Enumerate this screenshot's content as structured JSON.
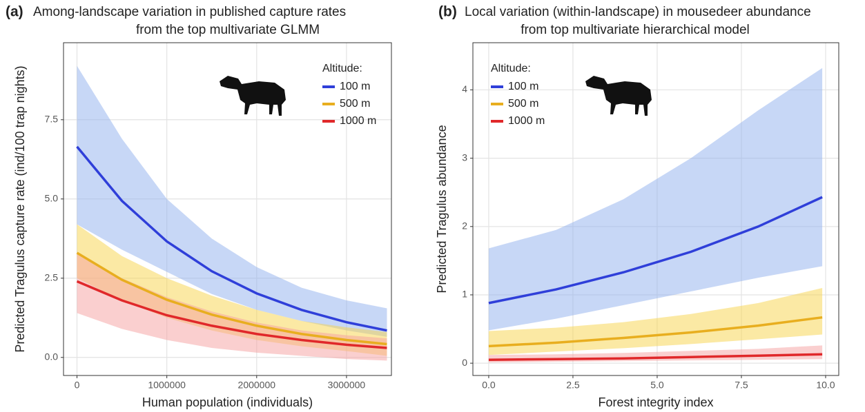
{
  "chart_data": [
    {
      "type": "line",
      "panel_label": "(a)",
      "title": "Among-landscape variation in published capture rates",
      "subtitle": "from the top multivariate GLMM",
      "x_label": "Human population (individuals)",
      "y_label": "Predicted Tragulus capture rate (ind/100 trap nights)",
      "x": [
        0,
        500000,
        1000000,
        1500000,
        2000000,
        2500000,
        3000000,
        3450000
      ],
      "xlim": [
        -150000,
        3500000
      ],
      "xticks": [
        0,
        1000000,
        2000000,
        3000000
      ],
      "ylim": [
        -0.57,
        9.93
      ],
      "yticks": [
        {
          "value": 0,
          "label": "0.0"
        },
        2.5,
        {
          "value": 5,
          "label": "5.0"
        },
        7.5
      ],
      "grid": true,
      "legend_title": "Altitude:",
      "legend_position": "top-right",
      "series": [
        {
          "name": "100 m",
          "color": "#2f3fd9",
          "band_color": "#8fb0ee",
          "values": [
            6.65,
            4.94,
            3.66,
            2.72,
            2.02,
            1.5,
            1.11,
            0.85
          ],
          "upper": [
            9.2,
            6.9,
            5.0,
            3.75,
            2.85,
            2.2,
            1.8,
            1.55
          ],
          "lower": [
            4.2,
            3.4,
            2.7,
            2.0,
            1.5,
            1.15,
            0.85,
            0.65
          ]
        },
        {
          "name": "500 m",
          "color": "#e8ae1f",
          "band_color": "#f8d34a",
          "values": [
            3.3,
            2.45,
            1.82,
            1.35,
            1.0,
            0.74,
            0.55,
            0.42
          ],
          "upper": [
            4.2,
            3.2,
            2.5,
            1.95,
            1.5,
            1.15,
            0.95,
            0.8
          ],
          "lower": [
            2.5,
            1.8,
            1.25,
            0.85,
            0.55,
            0.35,
            0.2,
            0.05
          ]
        },
        {
          "name": "1000 m",
          "color": "#e0282a",
          "band_color": "#f6a0a0",
          "values": [
            2.4,
            1.8,
            1.33,
            1.0,
            0.74,
            0.55,
            0.4,
            0.3
          ],
          "upper": [
            3.3,
            2.5,
            1.9,
            1.45,
            1.1,
            0.85,
            0.7,
            0.6
          ],
          "lower": [
            1.4,
            0.9,
            0.55,
            0.3,
            0.15,
            0.05,
            -0.05,
            -0.1
          ]
        }
      ]
    },
    {
      "type": "line",
      "panel_label": "(b)",
      "title": "Local variation (within-landscape) in mousedeer abundance",
      "subtitle": "from top multivariate hierarchical model",
      "x_label": "Forest integrity index",
      "y_label": "Predicted Tragulus abundance",
      "x": [
        0,
        2,
        4,
        6,
        8,
        9.9
      ],
      "xlim": [
        -0.47,
        10.39
      ],
      "xticks": [
        {
          "value": 0,
          "label": "0.0"
        },
        2.5,
        {
          "value": 5,
          "label": "5.0"
        },
        7.5,
        {
          "value": 10,
          "label": "10.0"
        }
      ],
      "ylim": [
        -0.18,
        4.69
      ],
      "yticks": [
        0,
        1,
        2,
        3,
        4
      ],
      "grid": true,
      "legend_title": "Altitude:",
      "legend_position": "top-left",
      "series": [
        {
          "name": "100 m",
          "color": "#2f3fd9",
          "band_color": "#8fb0ee",
          "values": [
            0.88,
            1.08,
            1.33,
            1.63,
            2.0,
            2.43
          ],
          "upper": [
            1.68,
            1.95,
            2.4,
            3.0,
            3.7,
            4.32
          ],
          "lower": [
            0.48,
            0.65,
            0.85,
            1.05,
            1.25,
            1.42
          ]
        },
        {
          "name": "500 m",
          "color": "#e8ae1f",
          "band_color": "#f8d34a",
          "values": [
            0.25,
            0.3,
            0.37,
            0.45,
            0.55,
            0.67
          ],
          "upper": [
            0.47,
            0.52,
            0.6,
            0.72,
            0.88,
            1.1
          ],
          "lower": [
            0.12,
            0.17,
            0.22,
            0.28,
            0.35,
            0.42
          ]
        },
        {
          "name": "1000 m",
          "color": "#e0282a",
          "band_color": "#f6a0a0",
          "values": [
            0.05,
            0.06,
            0.07,
            0.09,
            0.11,
            0.13
          ],
          "upper": [
            0.12,
            0.13,
            0.15,
            0.18,
            0.21,
            0.26
          ],
          "lower": [
            0.01,
            0.02,
            0.03,
            0.04,
            0.05,
            0.06
          ]
        }
      ]
    }
  ]
}
